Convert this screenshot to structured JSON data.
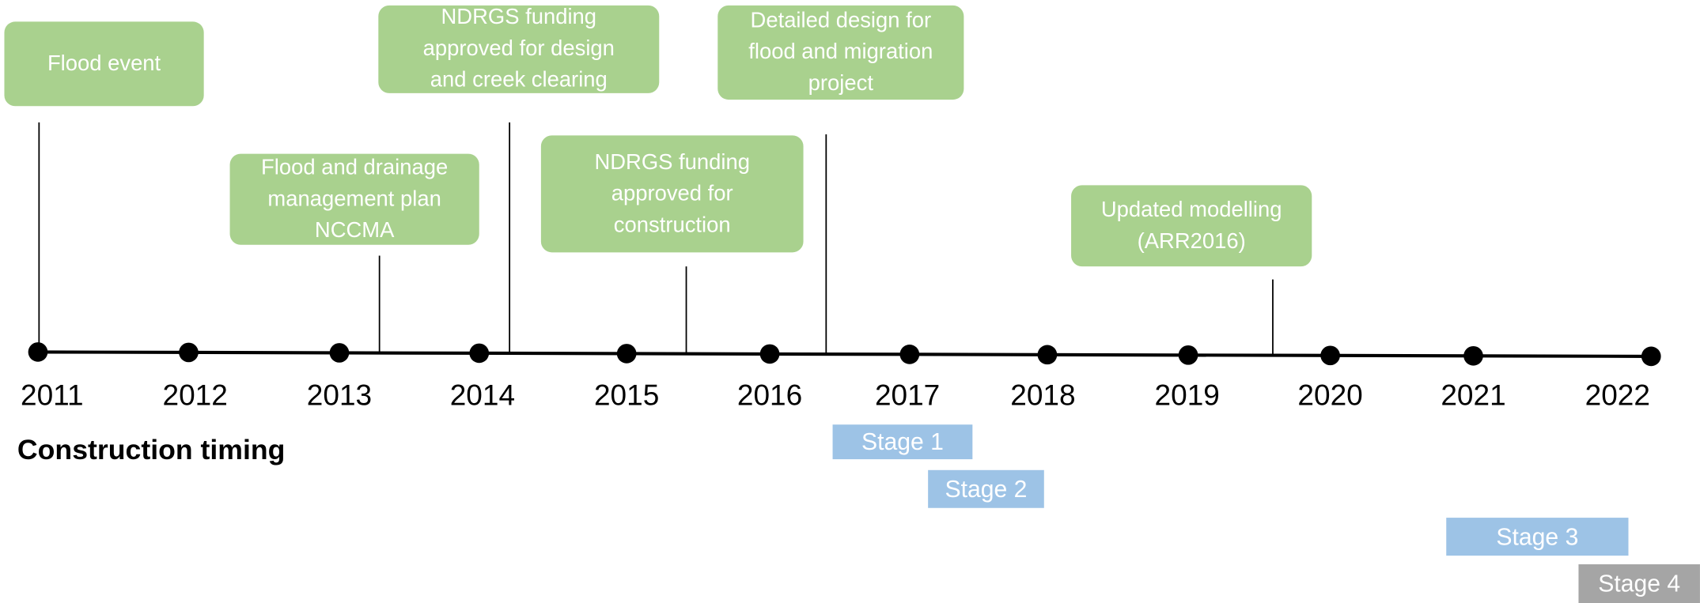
{
  "timeline": {
    "years": [
      "2011",
      "2012",
      "2013",
      "2014",
      "2015",
      "2016",
      "2017",
      "2018",
      "2019",
      "2020",
      "2021",
      "2022"
    ],
    "events": [
      {
        "lines": [
          "Flood event"
        ]
      },
      {
        "lines": [
          "Flood and drainage",
          "management plan",
          "NCCMA"
        ]
      },
      {
        "lines": [
          "NDRGS funding",
          "approved for design",
          "and creek clearing"
        ]
      },
      {
        "lines": [
          "NDRGS funding",
          "approved for",
          "construction"
        ]
      },
      {
        "lines": [
          "Detailed design for",
          "flood and migration",
          "project"
        ]
      },
      {
        "lines": [
          "Updated modelling",
          "(ARR2016)"
        ]
      }
    ],
    "construction_title": "Construction timing",
    "stages": [
      "Stage 1",
      "Stage 2",
      "Stage 3",
      "Stage 4"
    ]
  }
}
